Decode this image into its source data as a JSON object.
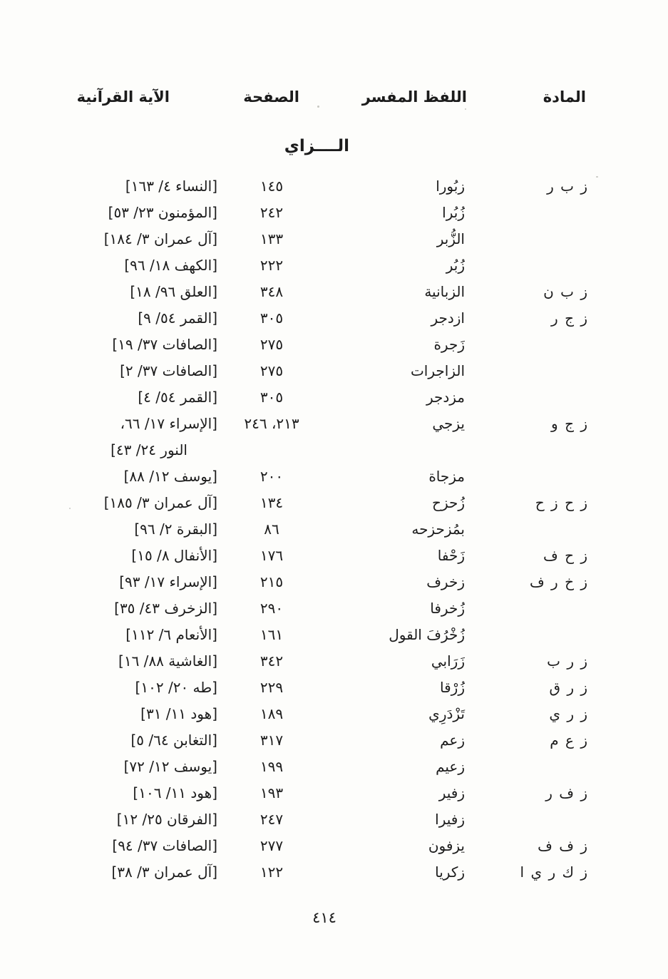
{
  "page": {
    "section_title": "الــــزاي",
    "page_number": "٤١٤"
  },
  "table": {
    "headers": {
      "root": "المادة",
      "word": "اللفظ المفسر",
      "page": "الصفحة",
      "verse": "الآية القرآنية"
    },
    "rows": [
      {
        "root": "ز ب ر",
        "word": "زبُورا",
        "page": "١٤٥",
        "verse": "[النساء ٤/ ١٦٣]"
      },
      {
        "root": "",
        "word": "زُبُرا",
        "page": "٢٤٢",
        "verse": "[المؤمنون ٢٣/ ٥٣]"
      },
      {
        "root": "",
        "word": "الزُّبر",
        "page": "١٣٣",
        "verse": "[آل عمران ٣/ ١٨٤]"
      },
      {
        "root": "",
        "word": "زُبُر",
        "page": "٢٢٢",
        "verse": "[الكهف ١٨/ ٩٦]"
      },
      {
        "root": "ز ب ن",
        "word": "الزبانية",
        "page": "٣٤٨",
        "verse": "[العلق ٩٦/ ١٨]"
      },
      {
        "root": "ز ج ر",
        "word": "ازدجر",
        "page": "٣٠٥",
        "verse": "[القمر ٥٤/ ٩]"
      },
      {
        "root": "",
        "word": "زَجرة",
        "page": "٢٧٥",
        "verse": "[الصافات ٣٧/ ١٩]"
      },
      {
        "root": "",
        "word": "الزاجرات",
        "page": "٢٧٥",
        "verse": "[الصافات ٣٧/ ٢]"
      },
      {
        "root": "",
        "word": "مزدجر",
        "page": "٣٠٥",
        "verse": "[القمر ٥٤/ ٤]"
      },
      {
        "root": "ز ج و",
        "word": "يزجي",
        "page": "٢١٣، ٢٤٦",
        "verse": "[الإسراء ١٧/ ٦٦،",
        "verse2": "النور ٢٤/ ٤٣]"
      },
      {
        "root": "",
        "word": "مزجاة",
        "page": "٢٠٠",
        "verse": "[يوسف ١٢/ ٨٨]"
      },
      {
        "root": "ز ح ز ح",
        "word": "زُحزح",
        "page": "١٣٤",
        "verse": "[آل عمران ٣/ ١٨٥]"
      },
      {
        "root": "",
        "word": "بمُزحزحه",
        "page": "٨٦",
        "verse": "[البقرة ٢/ ٩٦]"
      },
      {
        "root": "ز ح ف",
        "word": "زَحْفا",
        "page": "١٧٦",
        "verse": "[الأنفال ٨/ ١٥]"
      },
      {
        "root": "ز خ ر ف",
        "word": "زخرف",
        "page": "٢١٥",
        "verse": "[الإسراء ١٧/ ٩٣]"
      },
      {
        "root": "",
        "word": "زُخرفا",
        "page": "٢٩٠",
        "verse": "[الزخرف ٤٣/ ٣٥]"
      },
      {
        "root": "",
        "word": "زُخْرُفَ القول",
        "page": "١٦١",
        "verse": "[الأنعام ٦/ ١١٢]"
      },
      {
        "root": "ز ر ب",
        "word": "زَرَابي",
        "page": "٣٤٢",
        "verse": "[الغاشية ٨٨/ ١٦]"
      },
      {
        "root": "ز ر ق",
        "word": "زُرْقا",
        "page": "٢٢٩",
        "verse": "[طه ٢٠/ ١٠٢]"
      },
      {
        "root": "ز ر ي",
        "word": "تَزْدَرِي",
        "page": "١٨٩",
        "verse": "[هود ١١/ ٣١]"
      },
      {
        "root": "ز ع م",
        "word": "زعم",
        "page": "٣١٧",
        "verse": "[التغابن ٦٤/ ٥]"
      },
      {
        "root": "",
        "word": "زعيم",
        "page": "١٩٩",
        "verse": "[يوسف ١٢/ ٧٢]"
      },
      {
        "root": "ز ف ر",
        "word": "زفير",
        "page": "١٩٣",
        "verse": "[هود ١١/ ١٠٦]"
      },
      {
        "root": "",
        "word": "زفيرا",
        "page": "٢٤٧",
        "verse": "[الفرقان ٢٥/ ١٢]"
      },
      {
        "root": "ز ف ف",
        "word": "يزفون",
        "page": "٢٧٧",
        "verse": "[الصافات ٣٧/ ٩٤]"
      },
      {
        "root": "ز ك ر ي ا",
        "word": "زكريا",
        "page": "١٢٢",
        "verse": "[آل عمران ٣/ ٣٨]"
      }
    ]
  }
}
